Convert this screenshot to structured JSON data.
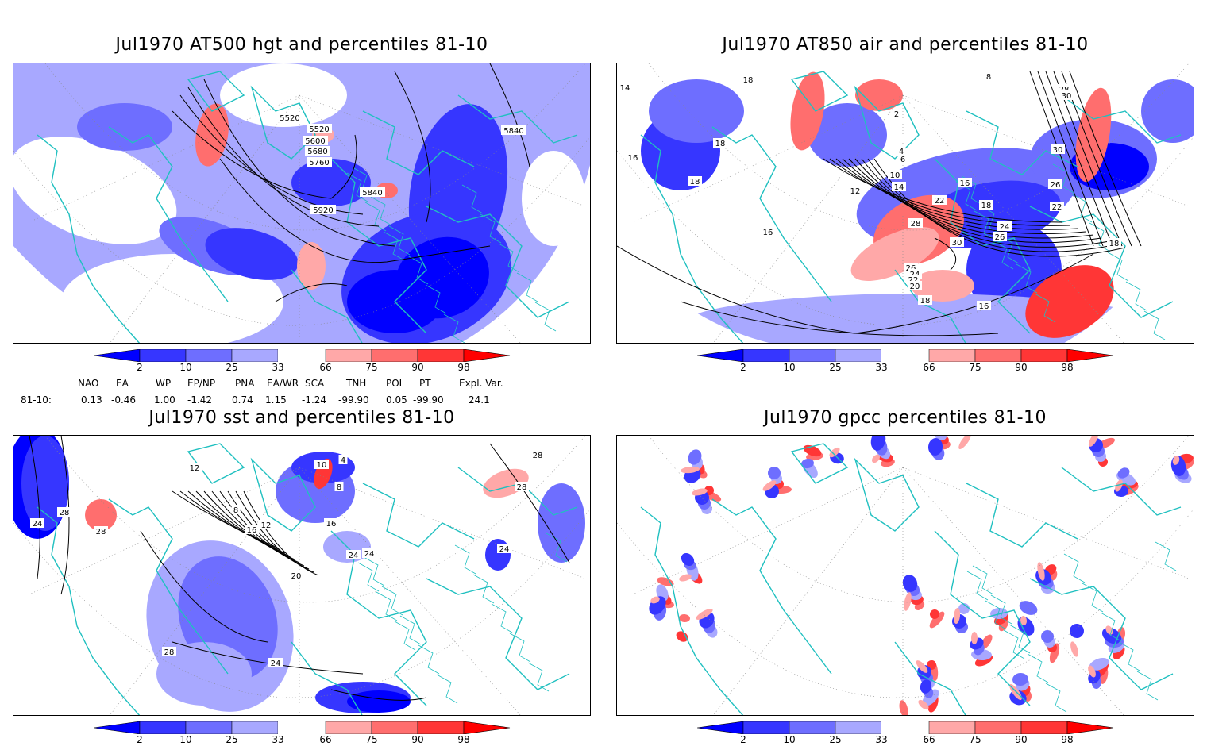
{
  "panels": [
    {
      "title": "Jul1970 AT500 hgt and percentiles 81-10",
      "contour_labels": [
        "5520",
        "5520",
        "5600",
        "5680",
        "5760",
        "5840",
        "5920",
        "5840"
      ]
    },
    {
      "title": "Jul1970 AT850 air and percentiles 81-10",
      "contour_labels": [
        "14",
        "18",
        "18",
        "18",
        "16",
        "16",
        "12",
        "10",
        "14",
        "16",
        "18",
        "22",
        "28",
        "30",
        "26",
        "24",
        "22",
        "20",
        "18",
        "16",
        "24",
        "26",
        "22",
        "30",
        "28",
        "30",
        "26",
        "18",
        "8",
        "2",
        "4",
        "6"
      ]
    },
    {
      "title": "Jul1970 sst and percentiles 81-10",
      "contour_labels": [
        "24",
        "28",
        "28",
        "12",
        "8",
        "12",
        "16",
        "16",
        "20",
        "24",
        "24",
        "28",
        "28",
        "24",
        "28",
        "24",
        "8",
        "10",
        "4"
      ]
    },
    {
      "title": "Jul1970 gpcc percentiles 81-10",
      "contour_labels": []
    }
  ],
  "colorbar": {
    "labels": [
      "2",
      "10",
      "25",
      "33",
      "66",
      "75",
      "90",
      "98"
    ],
    "colors": {
      "below2": "#0000ff",
      "b2_10": "#3636ff",
      "b10_25": "#6e6eff",
      "b25_33": "#a8a8ff",
      "b33_66": "#ffffff",
      "b66_75": "#ffa8a8",
      "b75_90": "#ff6e6e",
      "b90_98": "#ff3636",
      "above98": "#ff0000"
    }
  },
  "indices": {
    "headers": [
      "NAO",
      "EA",
      "WP",
      "EP/NP",
      "PNA",
      "EA/WR",
      "SCA",
      "TNH",
      "POL",
      "PT",
      "Expl. Var."
    ],
    "row_label": "81-10:",
    "values": [
      "0.13",
      "-0.46",
      "1.00",
      "-1.42",
      "0.74",
      "1.15",
      "-1.24",
      "-99.90",
      "0.05",
      "-99.90",
      "24.1"
    ]
  },
  "colors": {
    "coast": "#20c0c0",
    "contour": "#000000",
    "grid": "#888888"
  }
}
